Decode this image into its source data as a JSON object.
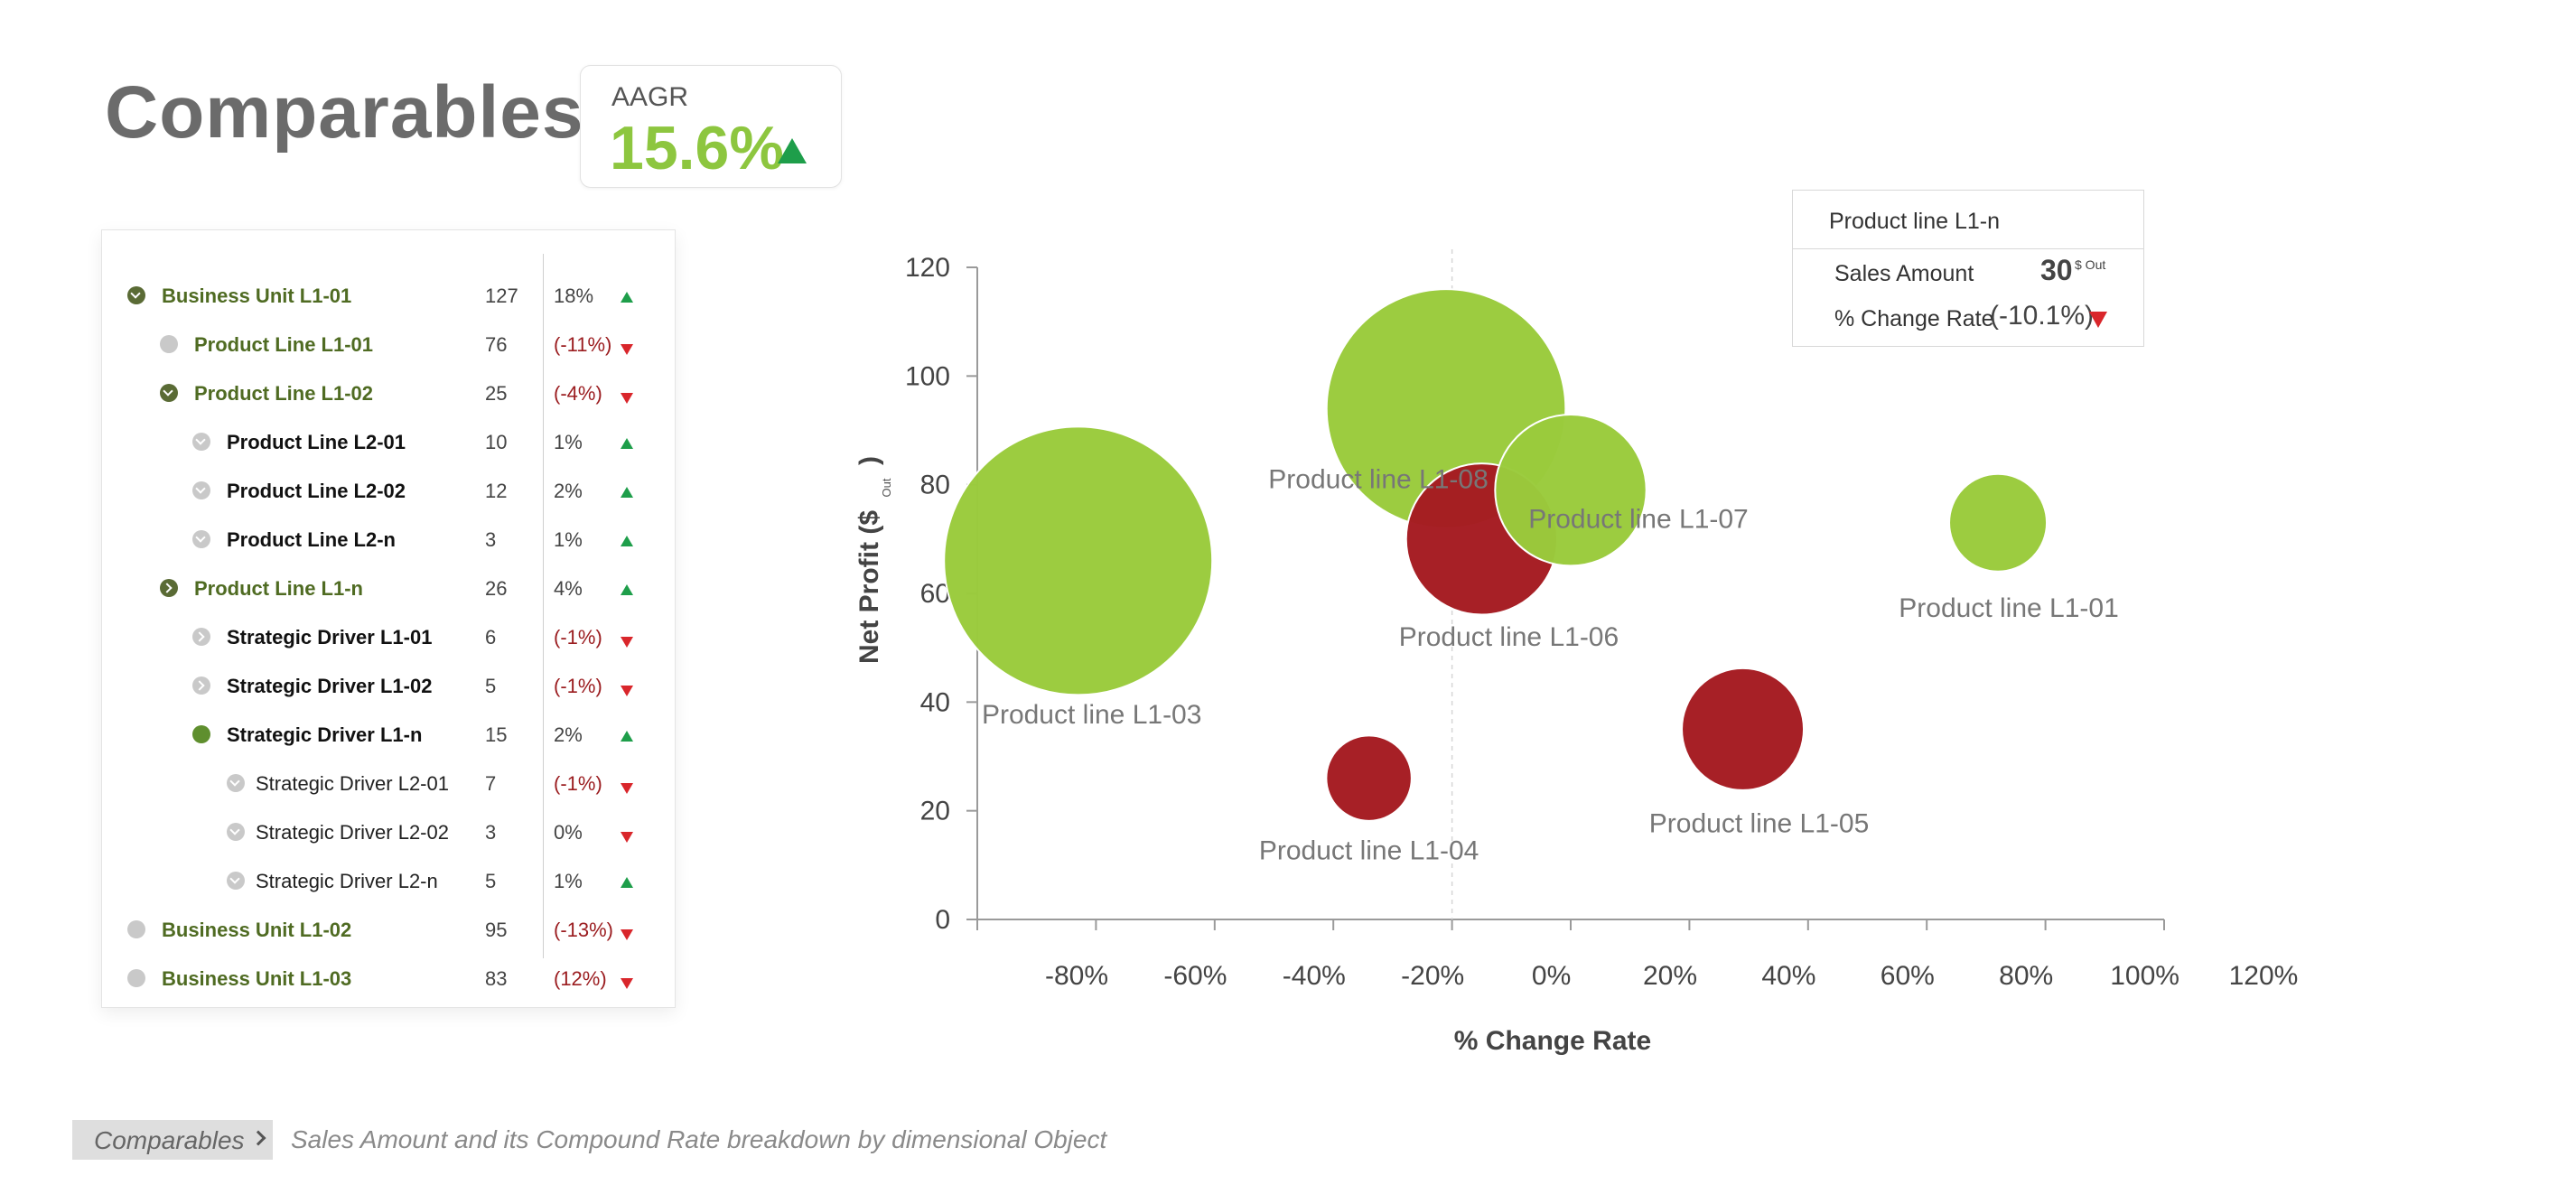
{
  "header": {
    "title": "Comparables"
  },
  "kpi": {
    "label": "AAGR",
    "value": "15.6%",
    "trend": "up"
  },
  "tree": {
    "rows": [
      {
        "label": "Business Unit L1-01",
        "count": "127",
        "pct": "18%",
        "trend": "up",
        "level": 1,
        "icon": "expanded",
        "neg": false
      },
      {
        "label": "Product Line L1-01",
        "count": "76",
        "pct": "(-11%)",
        "trend": "down",
        "level": 2,
        "icon": "dot",
        "neg": true
      },
      {
        "label": "Product Line L1-02",
        "count": "25",
        "pct": "(-4%)",
        "trend": "down",
        "level": 2,
        "icon": "expanded",
        "neg": true
      },
      {
        "label": "Product Line L2-01",
        "count": "10",
        "pct": "1%",
        "trend": "up",
        "level": 3,
        "icon": "sub",
        "neg": false
      },
      {
        "label": "Product Line L2-02",
        "count": "12",
        "pct": "2%",
        "trend": "up",
        "level": 3,
        "icon": "sub",
        "neg": false
      },
      {
        "label": "Product Line L2-n",
        "count": "3",
        "pct": "1%",
        "trend": "up",
        "level": 3,
        "icon": "sub",
        "neg": false
      },
      {
        "label": "Product Line L1-n",
        "count": "26",
        "pct": "4%",
        "trend": "up",
        "level": 2,
        "icon": "collapsed",
        "neg": false
      },
      {
        "label": "Strategic Driver L1-01",
        "count": "6",
        "pct": "(-1%)",
        "trend": "down",
        "level": 3,
        "icon": "subc",
        "neg": true
      },
      {
        "label": "Strategic Driver L1-02",
        "count": "5",
        "pct": "(-1%)",
        "trend": "down",
        "level": 3,
        "icon": "subc",
        "neg": true
      },
      {
        "label": "Strategic Driver L1-n",
        "count": "15",
        "pct": "2%",
        "trend": "up",
        "level": 3,
        "icon": "green",
        "neg": false
      },
      {
        "label": "Strategic Driver L2-01",
        "count": "7",
        "pct": "(-1%)",
        "trend": "down",
        "level": 4,
        "icon": "sub",
        "neg": true
      },
      {
        "label": "Strategic Driver L2-02",
        "count": "3",
        "pct": "0%",
        "trend": "down",
        "level": 4,
        "icon": "sub",
        "neg": false
      },
      {
        "label": "Strategic Driver L2-n",
        "count": "5",
        "pct": "1%",
        "trend": "up",
        "level": 4,
        "icon": "sub",
        "neg": false
      },
      {
        "label": "Business Unit L1-02",
        "count": "95",
        "pct": "(-13%)",
        "trend": "down",
        "level": 1,
        "icon": "dot",
        "neg": true
      },
      {
        "label": "Business Unit L1-03",
        "count": "83",
        "pct": "(12%)",
        "trend": "down",
        "level": 1,
        "icon": "dot",
        "neg": true
      }
    ]
  },
  "chart_data": {
    "type": "scatter",
    "xlabel": "% Change Rate",
    "ylabel": "Net Profit ($",
    "ylabel_unit": "Out",
    "xlim": [
      -80,
      120
    ],
    "ylim": [
      0,
      120
    ],
    "xticks": [
      "-80%",
      "-60%",
      "-40%",
      "-20%",
      "0%",
      "20%",
      "40%",
      "60%",
      "80%",
      "100%",
      "120%"
    ],
    "yticks": [
      "0",
      "20",
      "40",
      "60",
      "80",
      "100",
      "120"
    ],
    "colors": {
      "positive": "#9acb3c",
      "negative": "#a51c22"
    },
    "points": [
      {
        "name": "Product line L1-03",
        "x": -63,
        "y": 66,
        "size": 110,
        "color": "positive"
      },
      {
        "name": "Product line L1-08",
        "x": -1,
        "y": 94,
        "size": 98,
        "color": "positive"
      },
      {
        "name": "Product line L1-07",
        "x": 20,
        "y": 79,
        "size": 62,
        "color": "positive"
      },
      {
        "name": "Product line L1-06",
        "x": 5,
        "y": 70,
        "size": 62,
        "color": "negative"
      },
      {
        "name": "Product line L1-01",
        "x": 92,
        "y": 73,
        "size": 40,
        "color": "positive"
      },
      {
        "name": "Product line L1-04",
        "x": -14,
        "y": 26,
        "size": 35,
        "color": "negative"
      },
      {
        "name": "Product line L1-05",
        "x": 49,
        "y": 35,
        "size": 50,
        "color": "negative"
      }
    ]
  },
  "tooltip": {
    "title": "Product line L1-n",
    "row1_label": "Sales Amount",
    "row1_value": "30",
    "row1_unit": "$ Out",
    "row2_label": "% Change Rate",
    "row2_value": "(-10.1%)",
    "trend": "down"
  },
  "footer": {
    "breadcrumb": "Comparables",
    "caption": "Sales Amount and its Compound Rate breakdown by dimensional Object"
  }
}
